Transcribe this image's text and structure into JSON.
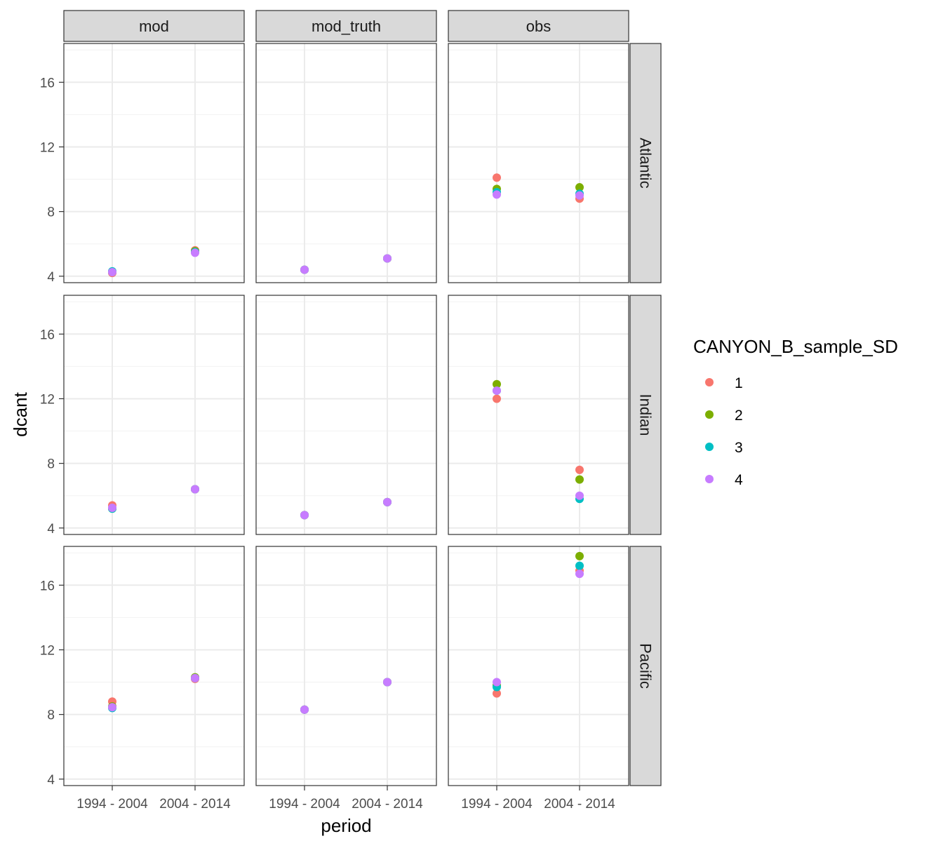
{
  "chart_data": {
    "type": "scatter",
    "facet_columns": [
      "mod",
      "mod_truth",
      "obs"
    ],
    "facet_rows": [
      "Atlantic",
      "Indian",
      "Pacific"
    ],
    "categories": [
      "1994 - 2004",
      "2004 - 2014"
    ],
    "xlabel": "period",
    "ylabel": "dcant",
    "ylim": [
      3.6,
      18.4
    ],
    "yticks": [
      4,
      8,
      12,
      16
    ],
    "yminor": [
      6,
      10,
      14,
      18
    ],
    "grid": true,
    "legend": {
      "title": "CANYON_B_sample_SD",
      "position": "right",
      "entries": [
        {
          "label": "1",
          "color": "#F8766D"
        },
        {
          "label": "2",
          "color": "#7CAE00"
        },
        {
          "label": "3",
          "color": "#00BFC4"
        },
        {
          "label": "4",
          "color": "#C77CFF"
        }
      ]
    },
    "series": [
      {
        "name": "1",
        "color": "#F8766D",
        "points": [
          {
            "col": "mod",
            "row": "Atlantic",
            "x": "1994 - 2004",
            "y": 4.2
          },
          {
            "col": "mod",
            "row": "Atlantic",
            "x": "2004 - 2014",
            "y": 5.6
          },
          {
            "col": "mod_truth",
            "row": "Atlantic",
            "x": "1994 - 2004",
            "y": 4.4
          },
          {
            "col": "mod_truth",
            "row": "Atlantic",
            "x": "2004 - 2014",
            "y": 5.1
          },
          {
            "col": "obs",
            "row": "Atlantic",
            "x": "1994 - 2004",
            "y": 10.1
          },
          {
            "col": "obs",
            "row": "Atlantic",
            "x": "2004 - 2014",
            "y": 8.8
          },
          {
            "col": "mod",
            "row": "Indian",
            "x": "1994 - 2004",
            "y": 5.4
          },
          {
            "col": "mod",
            "row": "Indian",
            "x": "2004 - 2014",
            "y": 6.4
          },
          {
            "col": "mod_truth",
            "row": "Indian",
            "x": "1994 - 2004",
            "y": 4.8
          },
          {
            "col": "mod_truth",
            "row": "Indian",
            "x": "2004 - 2014",
            "y": 5.6
          },
          {
            "col": "obs",
            "row": "Indian",
            "x": "1994 - 2004",
            "y": 12.0
          },
          {
            "col": "obs",
            "row": "Indian",
            "x": "2004 - 2014",
            "y": 7.6
          },
          {
            "col": "mod",
            "row": "Pacific",
            "x": "1994 - 2004",
            "y": 8.8
          },
          {
            "col": "mod",
            "row": "Pacific",
            "x": "2004 - 2014",
            "y": 10.2
          },
          {
            "col": "mod_truth",
            "row": "Pacific",
            "x": "1994 - 2004",
            "y": 8.3
          },
          {
            "col": "mod_truth",
            "row": "Pacific",
            "x": "2004 - 2014",
            "y": 10.0
          },
          {
            "col": "obs",
            "row": "Pacific",
            "x": "1994 - 2004",
            "y": 9.3
          },
          {
            "col": "obs",
            "row": "Pacific",
            "x": "2004 - 2014",
            "y": 16.9
          }
        ]
      },
      {
        "name": "2",
        "color": "#7CAE00",
        "points": [
          {
            "col": "mod",
            "row": "Atlantic",
            "x": "1994 - 2004",
            "y": 4.25
          },
          {
            "col": "mod",
            "row": "Atlantic",
            "x": "2004 - 2014",
            "y": 5.55
          },
          {
            "col": "mod_truth",
            "row": "Atlantic",
            "x": "1994 - 2004",
            "y": 4.4
          },
          {
            "col": "mod_truth",
            "row": "Atlantic",
            "x": "2004 - 2014",
            "y": 5.1
          },
          {
            "col": "obs",
            "row": "Atlantic",
            "x": "1994 - 2004",
            "y": 9.4
          },
          {
            "col": "obs",
            "row": "Atlantic",
            "x": "2004 - 2014",
            "y": 9.5
          },
          {
            "col": "mod",
            "row": "Indian",
            "x": "1994 - 2004",
            "y": 5.2
          },
          {
            "col": "mod",
            "row": "Indian",
            "x": "2004 - 2014",
            "y": 6.4
          },
          {
            "col": "mod_truth",
            "row": "Indian",
            "x": "1994 - 2004",
            "y": 4.8
          },
          {
            "col": "mod_truth",
            "row": "Indian",
            "x": "2004 - 2014",
            "y": 5.6
          },
          {
            "col": "obs",
            "row": "Indian",
            "x": "1994 - 2004",
            "y": 12.9
          },
          {
            "col": "obs",
            "row": "Indian",
            "x": "2004 - 2014",
            "y": 7.0
          },
          {
            "col": "mod",
            "row": "Pacific",
            "x": "1994 - 2004",
            "y": 8.5
          },
          {
            "col": "mod",
            "row": "Pacific",
            "x": "2004 - 2014",
            "y": 10.3
          },
          {
            "col": "mod_truth",
            "row": "Pacific",
            "x": "1994 - 2004",
            "y": 8.3
          },
          {
            "col": "mod_truth",
            "row": "Pacific",
            "x": "2004 - 2014",
            "y": 10.0
          },
          {
            "col": "obs",
            "row": "Pacific",
            "x": "1994 - 2004",
            "y": 9.8
          },
          {
            "col": "obs",
            "row": "Pacific",
            "x": "2004 - 2014",
            "y": 17.8
          }
        ]
      },
      {
        "name": "3",
        "color": "#00BFC4",
        "points": [
          {
            "col": "mod",
            "row": "Atlantic",
            "x": "1994 - 2004",
            "y": 4.3
          },
          {
            "col": "mod",
            "row": "Atlantic",
            "x": "2004 - 2014",
            "y": 5.5
          },
          {
            "col": "mod_truth",
            "row": "Atlantic",
            "x": "1994 - 2004",
            "y": 4.4
          },
          {
            "col": "mod_truth",
            "row": "Atlantic",
            "x": "2004 - 2014",
            "y": 5.1
          },
          {
            "col": "obs",
            "row": "Atlantic",
            "x": "1994 - 2004",
            "y": 9.2
          },
          {
            "col": "obs",
            "row": "Atlantic",
            "x": "2004 - 2014",
            "y": 9.1
          },
          {
            "col": "mod",
            "row": "Indian",
            "x": "1994 - 2004",
            "y": 5.2
          },
          {
            "col": "mod",
            "row": "Indian",
            "x": "2004 - 2014",
            "y": 6.4
          },
          {
            "col": "mod_truth",
            "row": "Indian",
            "x": "1994 - 2004",
            "y": 4.8
          },
          {
            "col": "mod_truth",
            "row": "Indian",
            "x": "2004 - 2014",
            "y": 5.6
          },
          {
            "col": "obs",
            "row": "Indian",
            "x": "1994 - 2004",
            "y": 12.5
          },
          {
            "col": "obs",
            "row": "Indian",
            "x": "2004 - 2014",
            "y": 5.8
          },
          {
            "col": "mod",
            "row": "Pacific",
            "x": "1994 - 2004",
            "y": 8.4
          },
          {
            "col": "mod",
            "row": "Pacific",
            "x": "2004 - 2014",
            "y": 10.25
          },
          {
            "col": "mod_truth",
            "row": "Pacific",
            "x": "1994 - 2004",
            "y": 8.3
          },
          {
            "col": "mod_truth",
            "row": "Pacific",
            "x": "2004 - 2014",
            "y": 10.0
          },
          {
            "col": "obs",
            "row": "Pacific",
            "x": "1994 - 2004",
            "y": 9.7
          },
          {
            "col": "obs",
            "row": "Pacific",
            "x": "2004 - 2014",
            "y": 17.2
          }
        ]
      },
      {
        "name": "4",
        "color": "#C77CFF",
        "points": [
          {
            "col": "mod",
            "row": "Atlantic",
            "x": "1994 - 2004",
            "y": 4.25
          },
          {
            "col": "mod",
            "row": "Atlantic",
            "x": "2004 - 2014",
            "y": 5.45
          },
          {
            "col": "mod_truth",
            "row": "Atlantic",
            "x": "1994 - 2004",
            "y": 4.4
          },
          {
            "col": "mod_truth",
            "row": "Atlantic",
            "x": "2004 - 2014",
            "y": 5.1
          },
          {
            "col": "obs",
            "row": "Atlantic",
            "x": "1994 - 2004",
            "y": 9.05
          },
          {
            "col": "obs",
            "row": "Atlantic",
            "x": "2004 - 2014",
            "y": 9.0
          },
          {
            "col": "mod",
            "row": "Indian",
            "x": "1994 - 2004",
            "y": 5.25
          },
          {
            "col": "mod",
            "row": "Indian",
            "x": "2004 - 2014",
            "y": 6.4
          },
          {
            "col": "mod_truth",
            "row": "Indian",
            "x": "1994 - 2004",
            "y": 4.8
          },
          {
            "col": "mod_truth",
            "row": "Indian",
            "x": "2004 - 2014",
            "y": 5.6
          },
          {
            "col": "obs",
            "row": "Indian",
            "x": "1994 - 2004",
            "y": 12.5
          },
          {
            "col": "obs",
            "row": "Indian",
            "x": "2004 - 2014",
            "y": 6.0
          },
          {
            "col": "mod",
            "row": "Pacific",
            "x": "1994 - 2004",
            "y": 8.45
          },
          {
            "col": "mod",
            "row": "Pacific",
            "x": "2004 - 2014",
            "y": 10.25
          },
          {
            "col": "mod_truth",
            "row": "Pacific",
            "x": "1994 - 2004",
            "y": 8.3
          },
          {
            "col": "mod_truth",
            "row": "Pacific",
            "x": "2004 - 2014",
            "y": 10.0
          },
          {
            "col": "obs",
            "row": "Pacific",
            "x": "1994 - 2004",
            "y": 10.0
          },
          {
            "col": "obs",
            "row": "Pacific",
            "x": "2004 - 2014",
            "y": 16.7
          }
        ]
      }
    ]
  }
}
